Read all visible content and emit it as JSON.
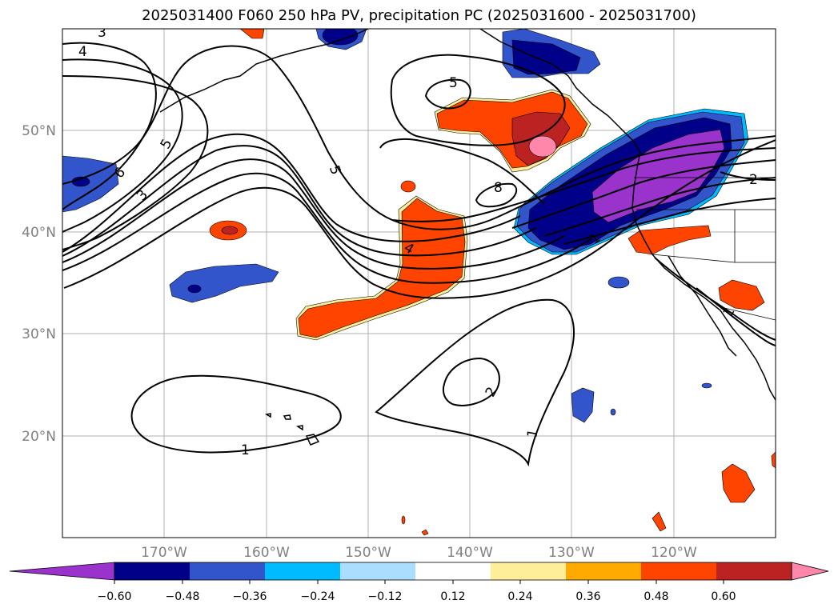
{
  "title": "2025031400 F060 250 hPa PV, precipitation PC (2025031600 - 2025031700)",
  "map": {
    "lon_ticks": [
      "170°W",
      "160°W",
      "150°W",
      "140°W",
      "130°W",
      "120°W"
    ],
    "lat_ticks": [
      "50°N",
      "40°N",
      "30°N",
      "20°N"
    ],
    "contour_labels": [
      "3",
      "4",
      "5",
      "6",
      "3",
      "5",
      "5",
      "8",
      "4",
      "1",
      "2",
      "2",
      "1",
      "1",
      "1"
    ],
    "line_color": "#000000",
    "grid_color": "#b0b0b0"
  },
  "colorbar": {
    "colors": [
      "#9933cc",
      "#000088",
      "#3355cc",
      "#00bbff",
      "#aaddff",
      "#ffffff",
      "#ffee99",
      "#ffaa00",
      "#ff4400",
      "#bb2222",
      "#ff88aa"
    ],
    "labels": [
      "−0.60",
      "−0.48",
      "−0.36",
      "−0.24",
      "−0.12",
      "0.12",
      "0.24",
      "0.36",
      "0.48",
      "0.60"
    ]
  }
}
